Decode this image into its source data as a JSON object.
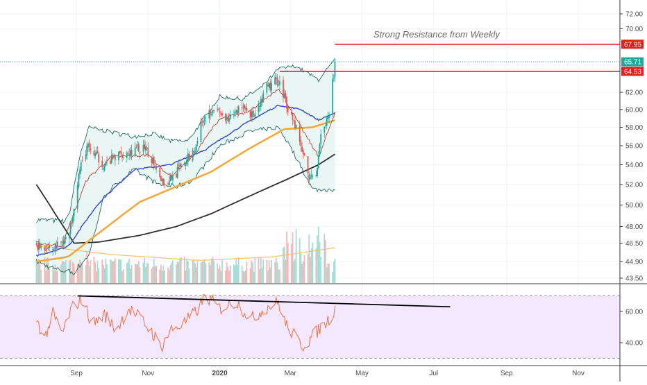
{
  "colors": {
    "up": "#26a69a",
    "down": "#ef5350",
    "bb_band": "#1e6b63",
    "bb_fill": "#e3f4f1",
    "ma_short": "#c0392b",
    "ma_blue": "#3a4fd1",
    "ma_orange": "#f5a83b",
    "ma_long": "#2f2f2f",
    "resistance": "#e11f1f",
    "last_price": "#26a69a",
    "rsi_line": "#f0703c",
    "rsi_fill": "#f3e8ff",
    "trend": "#000000",
    "volume_ma": "#f5c16a"
  },
  "chart_data": [
    {
      "type": "candlestick",
      "title": "",
      "y_scale": "log",
      "y_ticks": [
        "72.00",
        "70.00",
        "67.95",
        "65.71",
        "64.53",
        "62.00",
        "60.00",
        "58.00",
        "56.00",
        "54.00",
        "52.00",
        "50.00",
        "48.00",
        "46.50",
        "44.90",
        "43.50"
      ],
      "x_ticks": [
        "Sep",
        "Nov",
        "2020",
        "Mar",
        "May",
        "Jul",
        "Sep",
        "Nov"
      ],
      "x_range": [
        "2019-07-29",
        "2020-11-30"
      ],
      "price_badges": [
        {
          "label": "67.95",
          "value": 67.95,
          "color": "#e11f1f"
        },
        {
          "label": "65.71",
          "value": 65.71,
          "color": "#26a69a"
        },
        {
          "label": "64.53",
          "value": 64.53,
          "color": "#e11f1f"
        }
      ],
      "annotations": [
        {
          "text": "Strong Resistance from Weekly"
        }
      ],
      "resistance_levels": [
        {
          "value": 67.95,
          "from": "2020-04-08",
          "to": "2020-11-30"
        },
        {
          "value": 64.53,
          "from": "2020-02-21",
          "to": "2020-11-30"
        }
      ],
      "last_price": 65.71,
      "price_waypoints": [
        {
          "date": "2019-07-29",
          "value": 46.4
        },
        {
          "date": "2019-08-12",
          "value": 46.0
        },
        {
          "date": "2019-08-26",
          "value": 47.2
        },
        {
          "date": "2019-09-03",
          "value": 53.0
        },
        {
          "date": "2019-09-10",
          "value": 55.9
        },
        {
          "date": "2019-09-25",
          "value": 54.0
        },
        {
          "date": "2019-10-10",
          "value": 55.2
        },
        {
          "date": "2019-10-28",
          "value": 55.7
        },
        {
          "date": "2019-11-05",
          "value": 54.5
        },
        {
          "date": "2019-11-15",
          "value": 52.0
        },
        {
          "date": "2019-11-28",
          "value": 53.6
        },
        {
          "date": "2019-12-10",
          "value": 55.5
        },
        {
          "date": "2019-12-18",
          "value": 59.0
        },
        {
          "date": "2019-12-26",
          "value": 60.2
        },
        {
          "date": "2020-01-08",
          "value": 58.6
        },
        {
          "date": "2020-01-20",
          "value": 60.5
        },
        {
          "date": "2020-01-31",
          "value": 59.0
        },
        {
          "date": "2020-02-10",
          "value": 62.5
        },
        {
          "date": "2020-02-20",
          "value": 63.5
        },
        {
          "date": "2020-02-28",
          "value": 60.2
        },
        {
          "date": "2020-03-06",
          "value": 58.0
        },
        {
          "date": "2020-03-12",
          "value": 55.0
        },
        {
          "date": "2020-03-18",
          "value": 52.5
        },
        {
          "date": "2020-03-23",
          "value": 53.0
        },
        {
          "date": "2020-03-27",
          "value": 57.5
        },
        {
          "date": "2020-04-03",
          "value": 59.0
        },
        {
          "date": "2020-04-08",
          "value": 65.71
        }
      ],
      "indicators": {
        "ma_short_waypoints": [
          {
            "date": "2019-07-29",
            "value": 46.5
          },
          {
            "date": "2019-08-20",
            "value": 46.3
          },
          {
            "date": "2019-09-10",
            "value": 52.5
          },
          {
            "date": "2019-10-01",
            "value": 54.8
          },
          {
            "date": "2019-11-01",
            "value": 55.0
          },
          {
            "date": "2019-11-20",
            "value": 52.8
          },
          {
            "date": "2019-12-10",
            "value": 55.0
          },
          {
            "date": "2020-01-01",
            "value": 59.0
          },
          {
            "date": "2020-01-25",
            "value": 59.6
          },
          {
            "date": "2020-02-20",
            "value": 62.5
          },
          {
            "date": "2020-03-10",
            "value": 58.0
          },
          {
            "date": "2020-03-25",
            "value": 54.8
          },
          {
            "date": "2020-04-08",
            "value": 59.5
          }
        ],
        "ma_blue_waypoints": [
          {
            "date": "2019-07-29",
            "value": 45.4
          },
          {
            "date": "2019-08-25",
            "value": 46.2
          },
          {
            "date": "2019-09-20",
            "value": 50.2
          },
          {
            "date": "2019-10-20",
            "value": 53.5
          },
          {
            "date": "2019-11-20",
            "value": 54.0
          },
          {
            "date": "2019-12-20",
            "value": 55.6
          },
          {
            "date": "2020-01-20",
            "value": 58.2
          },
          {
            "date": "2020-02-20",
            "value": 60.5
          },
          {
            "date": "2020-03-10",
            "value": 60.0
          },
          {
            "date": "2020-03-25",
            "value": 58.8
          },
          {
            "date": "2020-04-08",
            "value": 59.6
          }
        ],
        "ma_orange_waypoints": [
          {
            "date": "2019-07-29",
            "value": 44.9
          },
          {
            "date": "2019-08-25",
            "value": 45.3
          },
          {
            "date": "2019-09-25",
            "value": 47.8
          },
          {
            "date": "2019-10-25",
            "value": 50.3
          },
          {
            "date": "2019-11-25",
            "value": 51.8
          },
          {
            "date": "2019-12-25",
            "value": 53.3
          },
          {
            "date": "2020-01-25",
            "value": 55.6
          },
          {
            "date": "2020-02-25",
            "value": 57.8
          },
          {
            "date": "2020-03-20",
            "value": 58.0
          },
          {
            "date": "2020-04-08",
            "value": 58.8
          }
        ],
        "ma_long_waypoints": [
          {
            "date": "2019-07-29",
            "value": 52.0
          },
          {
            "date": "2019-08-15",
            "value": 49.0
          },
          {
            "date": "2019-08-30",
            "value": 46.5
          },
          {
            "date": "2019-09-20",
            "value": 46.6
          },
          {
            "date": "2019-10-25",
            "value": 47.2
          },
          {
            "date": "2019-11-25",
            "value": 48.0
          },
          {
            "date": "2019-12-25",
            "value": 49.2
          },
          {
            "date": "2020-01-25",
            "value": 50.8
          },
          {
            "date": "2020-02-25",
            "value": 52.4
          },
          {
            "date": "2020-03-25",
            "value": 54.0
          },
          {
            "date": "2020-04-08",
            "value": 55.1
          }
        ],
        "bb_upper_waypoints": [
          {
            "date": "2019-07-29",
            "value": 48.6
          },
          {
            "date": "2019-08-25",
            "value": 48.5
          },
          {
            "date": "2019-09-05",
            "value": 55.5
          },
          {
            "date": "2019-09-12",
            "value": 58.0
          },
          {
            "date": "2019-09-25",
            "value": 57.6
          },
          {
            "date": "2019-10-20",
            "value": 57.0
          },
          {
            "date": "2019-11-05",
            "value": 57.3
          },
          {
            "date": "2019-11-20",
            "value": 56.5
          },
          {
            "date": "2019-12-05",
            "value": 56.5
          },
          {
            "date": "2019-12-20",
            "value": 59.3
          },
          {
            "date": "2020-01-01",
            "value": 61.5
          },
          {
            "date": "2020-01-20",
            "value": 61.2
          },
          {
            "date": "2020-02-05",
            "value": 62.5
          },
          {
            "date": "2020-02-20",
            "value": 64.8
          },
          {
            "date": "2020-03-05",
            "value": 65.2
          },
          {
            "date": "2020-03-25",
            "value": 63.5
          },
          {
            "date": "2020-04-08",
            "value": 65.9
          }
        ],
        "bb_lower_waypoints": [
          {
            "date": "2019-07-29",
            "value": 44.9
          },
          {
            "date": "2019-08-15",
            "value": 44.2
          },
          {
            "date": "2019-08-30",
            "value": 44.0
          },
          {
            "date": "2019-09-12",
            "value": 45.5
          },
          {
            "date": "2019-09-25",
            "value": 51.0
          },
          {
            "date": "2019-10-20",
            "value": 53.5
          },
          {
            "date": "2019-11-10",
            "value": 52.0
          },
          {
            "date": "2019-11-25",
            "value": 51.8
          },
          {
            "date": "2019-12-10",
            "value": 52.5
          },
          {
            "date": "2020-01-01",
            "value": 56.0
          },
          {
            "date": "2020-01-25",
            "value": 57.5
          },
          {
            "date": "2020-02-20",
            "value": 58.0
          },
          {
            "date": "2020-03-05",
            "value": 55.0
          },
          {
            "date": "2020-03-20",
            "value": 51.5
          },
          {
            "date": "2020-04-08",
            "value": 51.5
          }
        ],
        "volume_ma_waypoints": [
          {
            "date": "2019-07-29",
            "value": 46.3
          },
          {
            "date": "2019-10-01",
            "value": 45.5
          },
          {
            "date": "2019-12-15",
            "value": 45.0
          },
          {
            "date": "2020-02-15",
            "value": 45.3
          },
          {
            "date": "2020-04-08",
            "value": 46.1
          }
        ]
      }
    },
    {
      "type": "line",
      "title": "",
      "name": "",
      "y_ticks": [
        "60.00",
        "40.00"
      ],
      "y_range": [
        24,
        72
      ],
      "band": [
        30,
        70
      ],
      "rsi_waypoints": [
        {
          "date": "2019-07-29",
          "value": 55
        },
        {
          "date": "2019-08-05",
          "value": 43
        },
        {
          "date": "2019-08-12",
          "value": 58
        },
        {
          "date": "2019-08-20",
          "value": 46
        },
        {
          "date": "2019-08-28",
          "value": 62
        },
        {
          "date": "2019-09-05",
          "value": 68
        },
        {
          "date": "2019-09-15",
          "value": 52
        },
        {
          "date": "2019-09-25",
          "value": 58
        },
        {
          "date": "2019-10-05",
          "value": 48
        },
        {
          "date": "2019-10-15",
          "value": 62
        },
        {
          "date": "2019-10-25",
          "value": 56
        },
        {
          "date": "2019-11-05",
          "value": 46
        },
        {
          "date": "2019-11-12",
          "value": 37
        },
        {
          "date": "2019-11-20",
          "value": 48
        },
        {
          "date": "2019-12-01",
          "value": 52
        },
        {
          "date": "2019-12-12",
          "value": 60
        },
        {
          "date": "2019-12-20",
          "value": 70
        },
        {
          "date": "2020-01-01",
          "value": 62
        },
        {
          "date": "2020-01-15",
          "value": 66
        },
        {
          "date": "2020-01-28",
          "value": 55
        },
        {
          "date": "2020-02-08",
          "value": 62
        },
        {
          "date": "2020-02-20",
          "value": 66
        },
        {
          "date": "2020-02-26",
          "value": 52
        },
        {
          "date": "2020-03-05",
          "value": 44
        },
        {
          "date": "2020-03-12",
          "value": 38
        },
        {
          "date": "2020-03-20",
          "value": 44
        },
        {
          "date": "2020-03-27",
          "value": 50
        },
        {
          "date": "2020-04-03",
          "value": 55
        },
        {
          "date": "2020-04-08",
          "value": 62
        }
      ],
      "trendline": [
        {
          "date": "2019-09-02",
          "value": 70
        },
        {
          "date": "2020-07-15",
          "value": 63
        }
      ]
    }
  ]
}
